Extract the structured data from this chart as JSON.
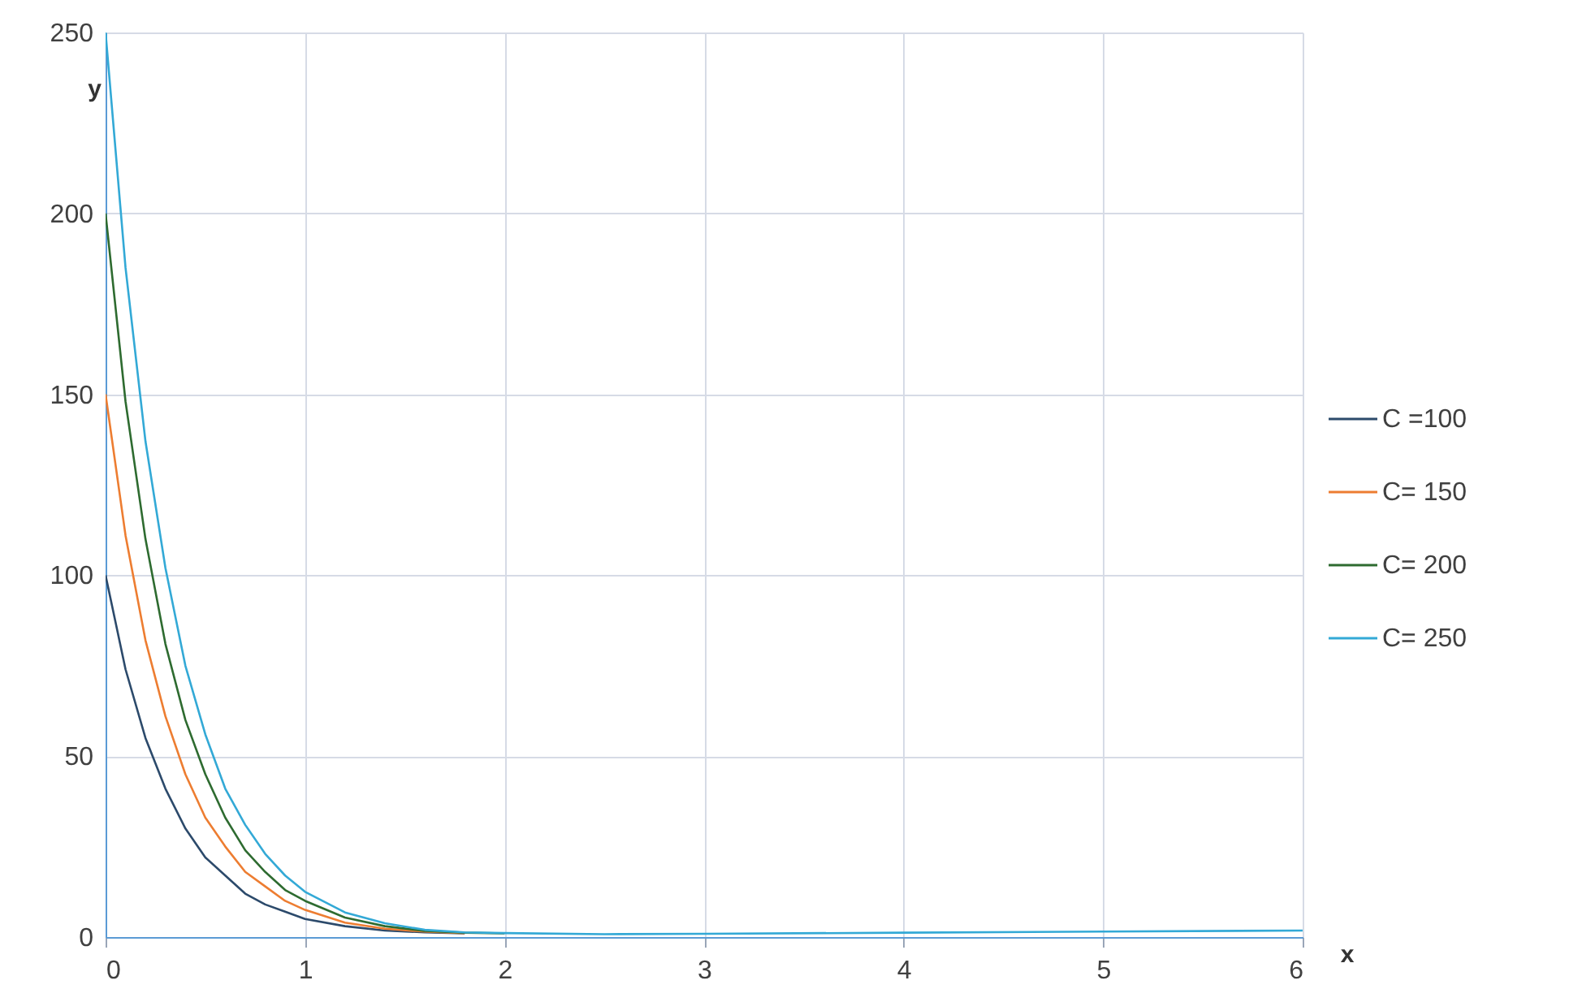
{
  "chart_data": {
    "type": "line",
    "xlabel": "x",
    "ylabel": "y",
    "x": [
      0,
      0.1,
      0.2,
      0.3,
      0.4,
      0.5,
      0.6,
      0.7,
      0.8,
      0.9,
      1,
      1.2,
      1.4,
      1.6,
      1.8,
      2,
      2.5,
      3,
      4,
      5,
      6
    ],
    "series": [
      {
        "name": "C =100",
        "color": "#2c4a6b",
        "values": [
          100,
          74,
          55,
          41,
          30,
          22,
          17,
          12,
          9,
          7,
          5,
          3,
          1.8,
          1.3,
          1,
          null,
          null,
          null,
          null,
          null,
          null
        ]
      },
      {
        "name": "C= 150",
        "color": "#ed7d31",
        "values": [
          150,
          111,
          82,
          61,
          45,
          33,
          25,
          18,
          14,
          10,
          7.5,
          4,
          2.3,
          1.5,
          1.1,
          null,
          null,
          null,
          null,
          null,
          null
        ]
      },
      {
        "name": "C= 200",
        "color": "#2e6b30",
        "values": [
          200,
          148,
          110,
          81,
          60,
          45,
          33,
          24,
          18,
          13,
          10,
          5.4,
          3,
          1.7,
          1.2,
          1,
          null,
          null,
          null,
          null,
          null
        ]
      },
      {
        "name": "C= 250",
        "color": "#33a9d6",
        "values": [
          250,
          185,
          137,
          102,
          75,
          56,
          41,
          31,
          23,
          17,
          12.5,
          6.8,
          3.8,
          2,
          1.3,
          1.1,
          0.8,
          0.9,
          1.2,
          1.5,
          1.8
        ]
      }
    ],
    "xlim": [
      0,
      6
    ],
    "xticks": [
      0,
      1,
      2,
      3,
      4,
      5,
      6
    ],
    "ylim": [
      0,
      250
    ],
    "yticks": [
      0,
      50,
      100,
      150,
      200,
      250
    ],
    "grid": true,
    "legend": "right",
    "line_style": "solid"
  }
}
